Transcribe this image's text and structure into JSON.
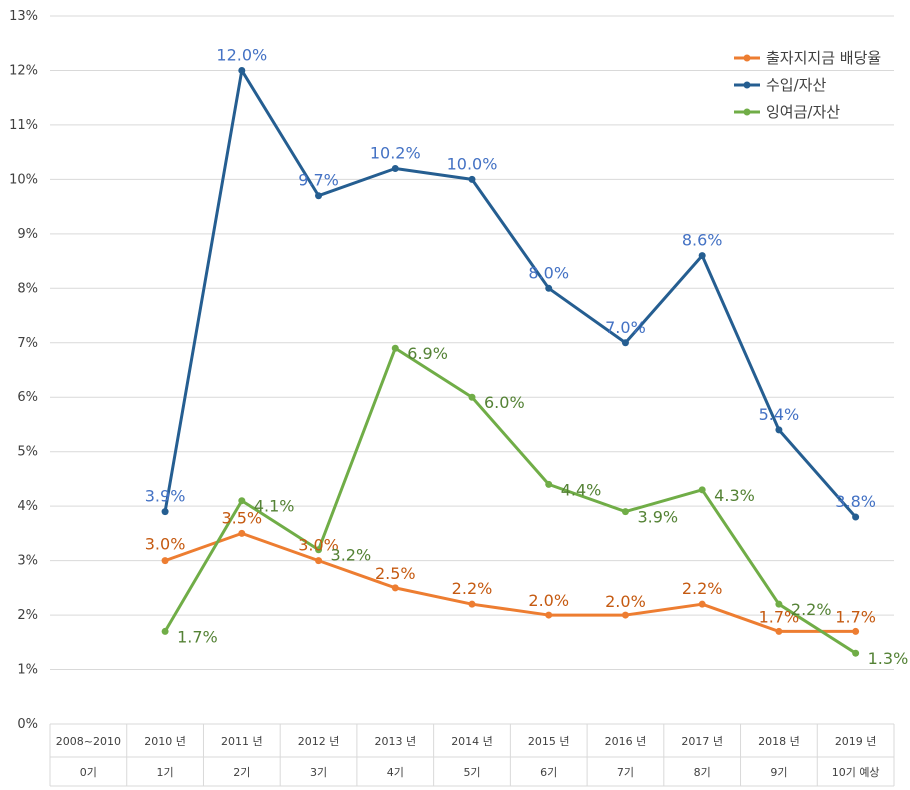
{
  "chart_data": {
    "type": "line",
    "y_ticks": [
      "0%",
      "1%",
      "2%",
      "3%",
      "4%",
      "5%",
      "6%",
      "7%",
      "8%",
      "9%",
      "10%",
      "11%",
      "12%",
      "13%"
    ],
    "ylim": [
      0,
      13
    ],
    "categories": [
      {
        "year": "2008~2010",
        "period": "0기"
      },
      {
        "year": "2010 년",
        "period": "1기"
      },
      {
        "year": "2011 년",
        "period": "2기"
      },
      {
        "year": "2012 년",
        "period": "3기"
      },
      {
        "year": "2013 년",
        "period": "4기"
      },
      {
        "year": "2014 년",
        "period": "5기"
      },
      {
        "year": "2015 년",
        "period": "6기"
      },
      {
        "year": "2016 년",
        "period": "7기"
      },
      {
        "year": "2017 년",
        "period": "8기"
      },
      {
        "year": "2018 년",
        "period": "9기"
      },
      {
        "year": "2019 년",
        "period": "10기 예상"
      }
    ],
    "legend_position": "top-right",
    "series": [
      {
        "name": "출자지지금 배당율",
        "color": "#ED7D31",
        "label_color": "#C55A11",
        "values": [
          null,
          3.0,
          3.5,
          3.0,
          2.5,
          2.2,
          2.0,
          2.0,
          2.2,
          1.7,
          1.7
        ],
        "labels": [
          null,
          "3.0%",
          "3.5%",
          "3.0%",
          "2.5%",
          "2.2%",
          "2.0%",
          "2.0%",
          "2.2%",
          "1.7%",
          "1.7%"
        ]
      },
      {
        "name": "수입/자산",
        "color": "#255E91",
        "label_color": "#4472C4",
        "values": [
          null,
          3.9,
          12.0,
          9.7,
          10.2,
          10.0,
          8.0,
          7.0,
          8.6,
          5.4,
          3.8
        ],
        "labels": [
          null,
          "3.9%",
          "12.0%",
          "9.7%",
          "10.2%",
          "10.0%",
          "8.0%",
          "7.0%",
          "8.6%",
          "5.4%",
          "3.8%"
        ]
      },
      {
        "name": "잉여금/자산",
        "color": "#70AD47",
        "label_color": "#548235",
        "values": [
          null,
          1.7,
          4.1,
          3.2,
          6.9,
          6.0,
          4.4,
          3.9,
          4.3,
          2.2,
          1.3
        ],
        "labels": [
          null,
          "1.7%",
          "4.1%",
          "3.2%",
          "6.9%",
          "6.0%",
          "4.4%",
          "3.9%",
          "4.3%",
          "2.2%",
          "1.3%"
        ]
      }
    ]
  }
}
